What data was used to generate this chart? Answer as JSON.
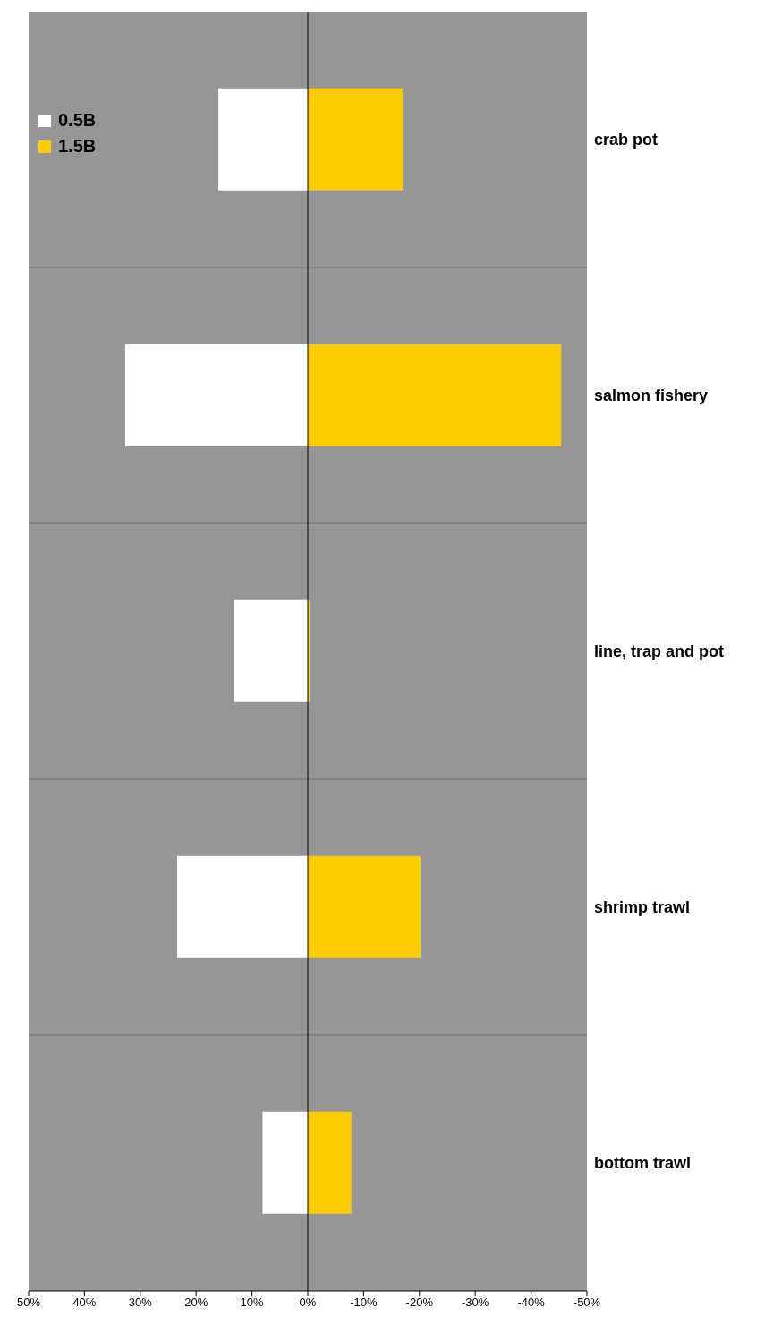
{
  "chart_data": {
    "type": "bar",
    "orientation": "horizontal",
    "stacked": true,
    "categories": [
      "crab pot",
      "salmon fishery",
      "line, trap and pot",
      "shrimp trawl",
      "bottom trawl"
    ],
    "series": [
      {
        "name": "0.5B",
        "color": "#ffffff",
        "values": [
          16,
          32.7,
          13.2,
          23.4,
          8.1
        ]
      },
      {
        "name": "1.5B",
        "color": "#ffcc00",
        "values": [
          -17,
          -45.4,
          -0.3,
          -20.2,
          -7.8
        ]
      }
    ],
    "xlim": [
      50,
      -50
    ],
    "xticks": [
      {
        "value": 50,
        "label": "50%"
      },
      {
        "value": 40,
        "label": "40%"
      },
      {
        "value": 30,
        "label": "30%"
      },
      {
        "value": 20,
        "label": "20%"
      },
      {
        "value": 10,
        "label": "10%"
      },
      {
        "value": 0,
        "label": "0%"
      },
      {
        "value": -10,
        "label": "-10%"
      },
      {
        "value": -20,
        "label": "-20%"
      },
      {
        "value": -30,
        "label": "-30%"
      },
      {
        "value": -40,
        "label": "-40%"
      },
      {
        "value": -50,
        "label": "-50%"
      }
    ],
    "grid": "y",
    "legend": "top left"
  }
}
